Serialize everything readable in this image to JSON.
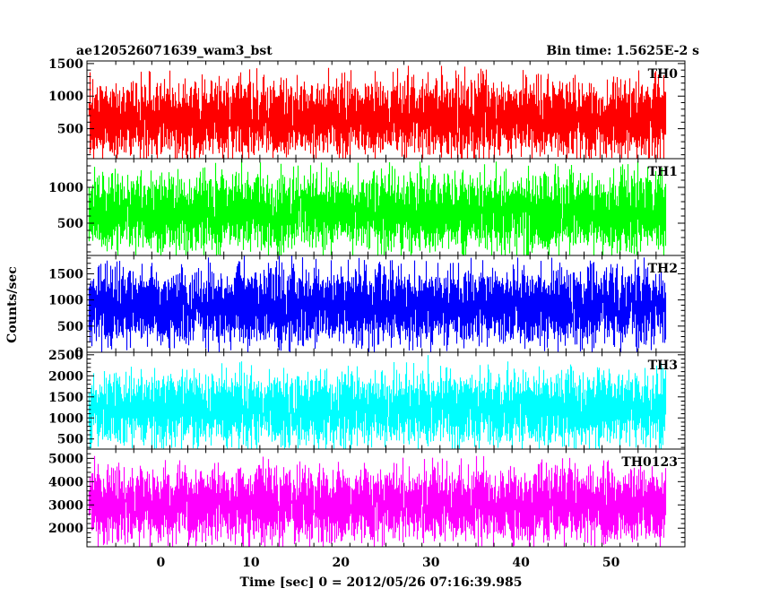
{
  "header": {
    "left_title": "ae120526071639_wam3_bst",
    "right_title": "Bin time: 1.5625E-2 s"
  },
  "axes": {
    "xlabel": "Time [sec] 0 = 2012/05/26 07:16:39.985",
    "ylabel": "Counts/sec"
  },
  "chart_data": {
    "type": "line",
    "title": "ae120526071639_wam3_bst",
    "subtitle": "Bin time: 1.5625E-2 s",
    "xlabel": "Time [sec] 0 = 2012/05/26 07:16:39.985",
    "ylabel": "Counts/sec",
    "xlim": [
      -8.2,
      58.2
    ],
    "x_ticks": [
      0,
      10,
      20,
      30,
      40,
      50
    ],
    "x_data_range": [
      -8,
      56
    ],
    "bin_time_s": 0.015625,
    "grid": false,
    "panels": [
      {
        "name": "TH0",
        "color": "#ff0000",
        "ylim": [
          40,
          1540
        ],
        "y_ticks": [
          500,
          1000,
          1500
        ],
        "mean": 650,
        "typical_min": 120,
        "typical_max": 1200,
        "peak_max": 1540
      },
      {
        "name": "TH1",
        "color": "#00ff00",
        "ylim": [
          50,
          1400
        ],
        "y_ticks": [
          500,
          1000
        ],
        "mean": 640,
        "typical_min": 150,
        "typical_max": 1150,
        "peak_max": 1400
      },
      {
        "name": "TH2",
        "color": "#0000ff",
        "ylim": [
          0,
          1850
        ],
        "y_ticks": [
          0,
          500,
          1000,
          1500
        ],
        "mean": 870,
        "typical_min": 200,
        "typical_max": 1550,
        "peak_max": 1850
      },
      {
        "name": "TH3",
        "color": "#00ffff",
        "ylim": [
          260,
          2560
        ],
        "y_ticks": [
          500,
          1000,
          1500,
          2000,
          2500
        ],
        "mean": 1200,
        "typical_min": 500,
        "typical_max": 2100,
        "peak_max": 2500
      },
      {
        "name": "TH0123",
        "color": "#ff00ff",
        "ylim": [
          1200,
          5400
        ],
        "y_ticks": [
          2000,
          3000,
          4000,
          5000
        ],
        "mean": 3000,
        "typical_min": 1700,
        "typical_max": 4600,
        "peak_max": 5100
      }
    ]
  }
}
